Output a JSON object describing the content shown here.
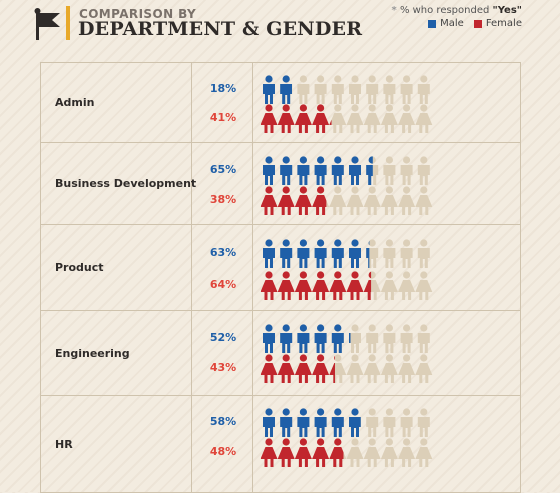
{
  "header": {
    "title_line1": "COMPARISON BY",
    "title_line2": "DEPARTMENT & GENDER",
    "note_star": "*",
    "note_prefix": "% who responded ",
    "note_yes": "\"Yes\"",
    "legend": [
      {
        "label": "Male",
        "color": "#1f5fa8"
      },
      {
        "label": "Female",
        "color": "#c1262d"
      }
    ]
  },
  "icon_colors": {
    "male": "#1f5fa8",
    "female": "#c1262d",
    "faded": "#dccfb8",
    "flag": "#2f2b29",
    "accent": "#e8a92a"
  },
  "chart_data": {
    "type": "pictograph",
    "icons_per_row": 10,
    "categories": [
      "Admin",
      "Business Development",
      "Product",
      "Engineering",
      "HR"
    ],
    "series": [
      {
        "name": "Male",
        "values": [
          18,
          65,
          63,
          52,
          58
        ],
        "labels": [
          "18%",
          "65%",
          "63%",
          "52%",
          "58%"
        ]
      },
      {
        "name": "Female",
        "values": [
          41,
          38,
          64,
          43,
          48
        ],
        "labels": [
          "41%",
          "38%",
          "64%",
          "43%",
          "48%"
        ]
      }
    ]
  }
}
